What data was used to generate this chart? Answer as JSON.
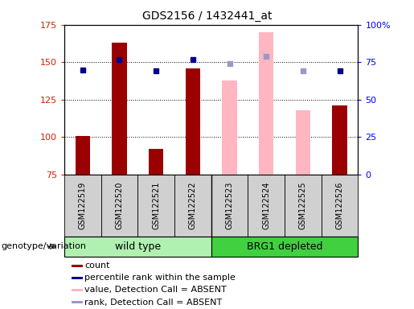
{
  "title": "GDS2156 / 1432441_at",
  "samples": [
    "GSM122519",
    "GSM122520",
    "GSM122521",
    "GSM122522",
    "GSM122523",
    "GSM122524",
    "GSM122525",
    "GSM122526"
  ],
  "count_values": [
    101,
    163,
    92,
    146,
    null,
    null,
    null,
    121
  ],
  "count_absent_values": [
    null,
    null,
    null,
    null,
    138,
    170,
    118,
    null
  ],
  "percentile_values": [
    145,
    152,
    144,
    152,
    null,
    null,
    null,
    144
  ],
  "percentile_absent_values": [
    null,
    null,
    null,
    null,
    149,
    154,
    144,
    null
  ],
  "ylim": [
    75,
    175
  ],
  "yticks": [
    75,
    100,
    125,
    150,
    175
  ],
  "right_yticks": [
    0,
    25,
    50,
    75,
    100
  ],
  "right_ylim": [
    0,
    100
  ],
  "bar_color_present": "#9b0000",
  "bar_color_absent": "#ffb6c1",
  "dot_color_present": "#00008b",
  "dot_color_absent": "#9999cc",
  "bar_width": 0.4,
  "dot_size": 22,
  "grid_lines": [
    100,
    125,
    150
  ],
  "group1_count": 4,
  "group2_count": 4,
  "group1_label": "wild type",
  "group2_label": "BRG1 depleted",
  "group1_color": "#b0f0b0",
  "group2_color": "#40d040",
  "genotype_label": "genotype/variation",
  "legend_items": [
    [
      "#9b0000",
      "count"
    ],
    [
      "#00008b",
      "percentile rank within the sample"
    ],
    [
      "#ffb6c1",
      "value, Detection Call = ABSENT"
    ],
    [
      "#9999cc",
      "rank, Detection Call = ABSENT"
    ]
  ],
  "title_fontsize": 10,
  "tick_fontsize": 8,
  "label_fontsize": 8,
  "sample_fontsize": 7
}
